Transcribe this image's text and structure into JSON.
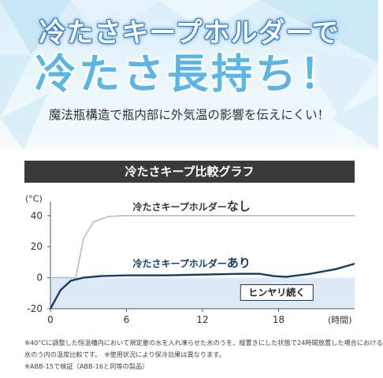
{
  "headline": {
    "line1": "冷たさキープホルダーで",
    "line2": "冷たさ長持ち！",
    "subtext": "魔法瓶構造で瓶内部に外気温の影響を伝えにくい！"
  },
  "graph_header": "冷たさキープ比較グラフ",
  "chart_data": {
    "type": "line",
    "title": "冷たさキープ比較グラフ",
    "xlabel": "(時間)",
    "ylabel": "(°C)",
    "xlim": [
      0,
      24
    ],
    "ylim": [
      -20,
      45
    ],
    "x_ticks": [
      "0",
      "6",
      "12",
      "18"
    ],
    "y_ticks": [
      "40",
      "20",
      "0",
      "-20"
    ],
    "grid": false,
    "series": [
      {
        "name_prefix": "冷たさキープホルダー",
        "name_suffix": "なし",
        "color": "#bbbbbb",
        "x": [
          0,
          1.5,
          2.0,
          2.6,
          3.4,
          4.6,
          6,
          12,
          18,
          24
        ],
        "y": [
          0,
          0,
          0,
          25,
          36,
          39.5,
          40,
          40,
          40,
          40
        ]
      },
      {
        "name_prefix": "冷たさキープホルダー",
        "name_suffix": "あり",
        "color": "#163d66",
        "x": [
          0,
          0.2,
          0.8,
          1.6,
          2.6,
          4,
          6,
          9,
          12,
          15,
          16.5,
          17.6,
          18.6,
          20.5,
          22.5,
          24
        ],
        "y": [
          -20,
          -17,
          -8,
          -2,
          0,
          1,
          1.5,
          1.5,
          2,
          2.5,
          2.5,
          1,
          0.5,
          2.5,
          5.5,
          9
        ]
      }
    ],
    "annotation": "ヒンヤリ続く",
    "highlight_color": "#dce9f7"
  },
  "notes": [
    "※40°Cに調整した恒温槽内において規定量の水を入れ凍らせた氷のうを、縦置きにした状態で24時間放置した場合における",
    "氷のう内の温度比較です。　※使用状況により保冷効果は異なります。",
    "※ABB-15で検証（ABB-16と同等の製品）"
  ]
}
